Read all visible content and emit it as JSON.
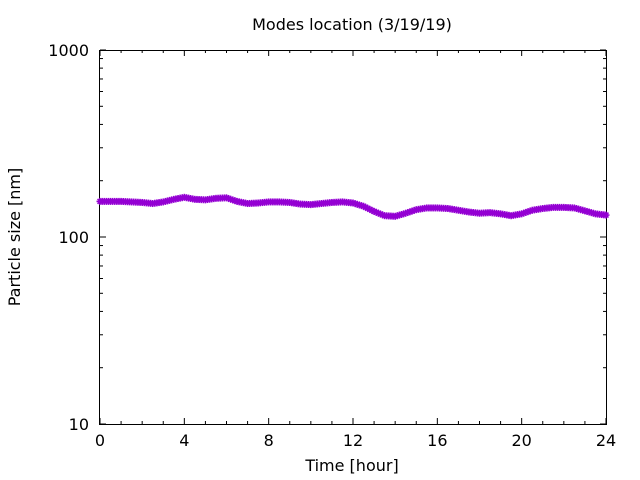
{
  "chart_data": {
    "type": "scatter",
    "title": "Modes location (3/19/19)",
    "xlabel": "Time [hour]",
    "ylabel": "Particle size [nm]",
    "xlim": [
      0,
      24
    ],
    "ylim": [
      10,
      1000
    ],
    "yscale": "log",
    "x_ticks": [
      0,
      4,
      8,
      12,
      16,
      20,
      24
    ],
    "x_tick_labels": [
      "0",
      "4",
      "8",
      "12",
      "16",
      "20",
      "24"
    ],
    "y_ticks": [
      10,
      100,
      1000
    ],
    "y_tick_labels": [
      "10",
      "100",
      "1000"
    ],
    "grid": false,
    "series": [
      {
        "color": "#9400d3",
        "marker": "star",
        "x": [
          0,
          0.5,
          1,
          1.5,
          2,
          2.5,
          3,
          3.5,
          4,
          4.5,
          5,
          5.5,
          6,
          6.5,
          7,
          7.5,
          8,
          8.5,
          9,
          9.5,
          10,
          10.5,
          11,
          11.5,
          12,
          12.5,
          13,
          13.5,
          14,
          14.5,
          15,
          15.5,
          16,
          16.5,
          17,
          17.5,
          18,
          18.5,
          19,
          19.5,
          20,
          20.5,
          21,
          21.5,
          22,
          22.5,
          23,
          23.5,
          24
        ],
        "y": [
          155,
          155,
          155,
          154,
          153,
          151,
          154,
          159,
          163,
          159,
          158,
          161,
          162,
          155,
          151,
          152,
          154,
          154,
          153,
          150,
          149,
          151,
          153,
          154,
          152,
          146,
          137,
          130,
          129,
          134,
          140,
          143,
          143,
          142,
          139,
          136,
          134,
          135,
          133,
          130,
          133,
          139,
          142,
          144,
          144,
          143,
          138,
          133,
          131
        ]
      }
    ]
  }
}
